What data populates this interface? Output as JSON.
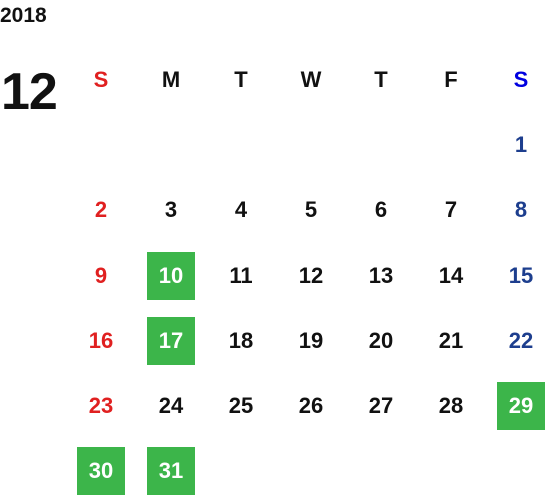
{
  "calendar": {
    "year": "2018",
    "month": "12",
    "weekdays": [
      "S",
      "M",
      "T",
      "W",
      "T",
      "F",
      "S"
    ],
    "weeks": [
      [
        null,
        null,
        null,
        null,
        null,
        null,
        {
          "day": 1,
          "marked": false
        }
      ],
      [
        {
          "day": 2,
          "marked": false
        },
        {
          "day": 3,
          "marked": false
        },
        {
          "day": 4,
          "marked": false
        },
        {
          "day": 5,
          "marked": false
        },
        {
          "day": 6,
          "marked": false
        },
        {
          "day": 7,
          "marked": false
        },
        {
          "day": 8,
          "marked": false
        }
      ],
      [
        {
          "day": 9,
          "marked": false
        },
        {
          "day": 10,
          "marked": true
        },
        {
          "day": 11,
          "marked": false
        },
        {
          "day": 12,
          "marked": false
        },
        {
          "day": 13,
          "marked": false
        },
        {
          "day": 14,
          "marked": false
        },
        {
          "day": 15,
          "marked": false
        }
      ],
      [
        {
          "day": 16,
          "marked": false
        },
        {
          "day": 17,
          "marked": true
        },
        {
          "day": 18,
          "marked": false
        },
        {
          "day": 19,
          "marked": false
        },
        {
          "day": 20,
          "marked": false
        },
        {
          "day": 21,
          "marked": false
        },
        {
          "day": 22,
          "marked": false
        }
      ],
      [
        {
          "day": 23,
          "marked": false
        },
        {
          "day": 24,
          "marked": false
        },
        {
          "day": 25,
          "marked": false
        },
        {
          "day": 26,
          "marked": false
        },
        {
          "day": 27,
          "marked": false
        },
        {
          "day": 28,
          "marked": false
        },
        {
          "day": 29,
          "marked": true
        }
      ],
      [
        {
          "day": 30,
          "marked": true
        },
        {
          "day": 31,
          "marked": true
        },
        null,
        null,
        null,
        null,
        null
      ]
    ]
  }
}
